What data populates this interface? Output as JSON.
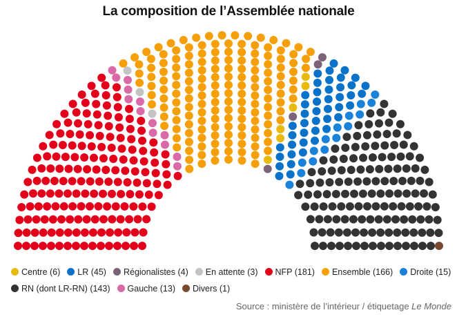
{
  "title": "La composition de l’Assemblée nationale",
  "chart_data": {
    "type": "parliament",
    "total_seats": 577,
    "groups": [
      {
        "name": "NFP",
        "label": "NFP (181)",
        "seats": 181,
        "color": "#e3001b"
      },
      {
        "name": "Gauche",
        "label": "Gauche (13)",
        "seats": 13,
        "color": "#d96aa7"
      },
      {
        "name": "En attente",
        "label": "En attente (3)",
        "seats": 3,
        "color": "#c4c4c4"
      },
      {
        "name": "Ensemble",
        "label": "Ensemble (166)",
        "seats": 166,
        "color": "#f5a00a"
      },
      {
        "name": "Centre",
        "label": "Centre (6)",
        "seats": 6,
        "color": "#e8b90e"
      },
      {
        "name": "Régionalistes",
        "label": "Régionalistes (4)",
        "seats": 4,
        "color": "#7b6478"
      },
      {
        "name": "LR",
        "label": "LR (45)",
        "seats": 45,
        "color": "#0a73c9"
      },
      {
        "name": "Droite",
        "label": "Droite (15)",
        "seats": 15,
        "color": "#1a82d8"
      },
      {
        "name": "RN (dont LR-RN)",
        "label": "RN (dont LR-RN) (143)",
        "seats": 143,
        "color": "#333333"
      },
      {
        "name": "Divers",
        "label": "Divers (1)",
        "seats": 1,
        "color": "#7a4a2e"
      }
    ]
  },
  "legend": {
    "row1": [
      {
        "label": "Centre (6)",
        "color": "#e8b90e"
      },
      {
        "label": "LR (45)",
        "color": "#0a73c9"
      },
      {
        "label": "Régionalistes (4)",
        "color": "#7b6478"
      },
      {
        "label": "En attente (3)",
        "color": "#c4c4c4"
      },
      {
        "label": "NFP (181)",
        "color": "#e3001b"
      },
      {
        "label": "Ensemble (166)",
        "color": "#f5a00a"
      },
      {
        "label": "Droite (15)",
        "color": "#1a82d8"
      }
    ],
    "row2": [
      {
        "label": "RN (dont LR-RN) (143)",
        "color": "#333333"
      },
      {
        "label": "Gauche (13)",
        "color": "#d96aa7"
      },
      {
        "label": "Divers (1)",
        "color": "#7a4a2e"
      }
    ]
  },
  "source": {
    "prefix": "Source : ministère de l’intérieur / étiquetage ",
    "italic": "Le Monde"
  }
}
